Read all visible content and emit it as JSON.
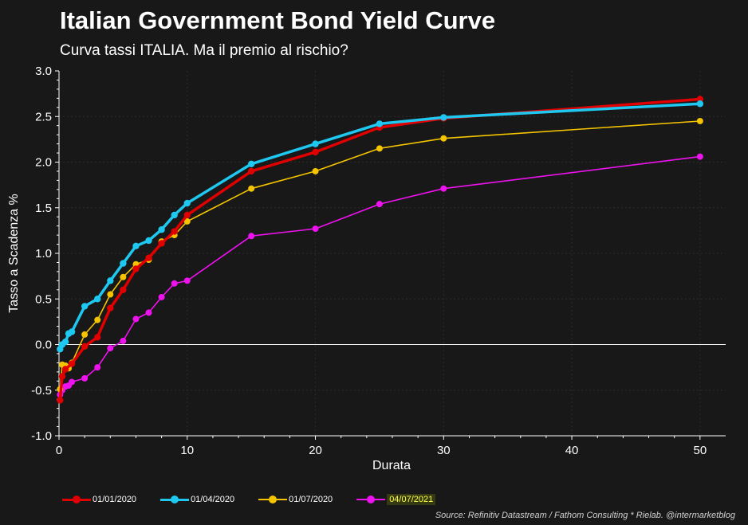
{
  "title": "Italian Government Bond Yield Curve",
  "subtitle": "Curva tassi ITALIA. Ma il premio al rischio?",
  "source": "Source: Refinitiv Datastream / Fathom Consulting * Rielab. @intermarketblog",
  "chart_data": {
    "type": "line",
    "xlabel": "Durata",
    "ylabel": "Tasso a Scadenza %",
    "xlim": [
      0,
      52
    ],
    "ylim": [
      -1.0,
      3.0
    ],
    "xticks": [
      "0",
      "10",
      "20",
      "30",
      "40",
      "50"
    ],
    "yticks": [
      "-1.0",
      "-0.5",
      "0.0",
      "0.5",
      "1.0",
      "1.5",
      "2.0",
      "2.5",
      "3.0"
    ],
    "grid": true,
    "legend_position": "bottom",
    "series": [
      {
        "name": "01/01/2020",
        "color": "#e00000",
        "x": [
          0.08,
          0.25,
          0.5,
          1,
          2,
          3,
          4,
          5,
          6,
          7,
          8,
          9,
          10,
          15,
          20,
          25,
          30,
          50
        ],
        "y": [
          -0.61,
          -0.35,
          -0.27,
          -0.21,
          -0.02,
          0.08,
          0.4,
          0.6,
          0.83,
          0.95,
          1.11,
          1.24,
          1.42,
          1.9,
          2.11,
          2.38,
          2.48,
          2.69
        ]
      },
      {
        "name": "01/04/2020",
        "color": "#1ec8f0",
        "x": [
          0.08,
          0.25,
          0.5,
          0.75,
          1,
          2,
          3,
          4,
          5,
          6,
          7,
          8,
          9,
          10,
          15,
          20,
          25,
          30,
          50
        ],
        "y": [
          -0.05,
          0.0,
          0.03,
          0.12,
          0.14,
          0.42,
          0.5,
          0.7,
          0.89,
          1.08,
          1.14,
          1.26,
          1.42,
          1.55,
          1.98,
          2.2,
          2.42,
          2.49,
          2.64
        ]
      },
      {
        "name": "01/07/2020",
        "color": "#f5c400",
        "x": [
          0.08,
          0.25,
          0.5,
          0.75,
          1,
          2,
          3,
          4,
          5,
          6,
          7,
          8,
          9,
          10,
          15,
          20,
          25,
          30,
          50
        ],
        "y": [
          -0.49,
          -0.22,
          -0.23,
          -0.26,
          -0.2,
          0.11,
          0.27,
          0.55,
          0.74,
          0.88,
          0.93,
          1.13,
          1.2,
          1.35,
          1.71,
          1.9,
          2.15,
          2.26,
          2.45
        ]
      },
      {
        "name": "04/07/2021",
        "color": "#ee12ee",
        "x": [
          0.08,
          0.25,
          0.5,
          0.75,
          1,
          2,
          3,
          4,
          5,
          6,
          7,
          8,
          9,
          10,
          15,
          20,
          25,
          30,
          50
        ],
        "y": [
          -0.55,
          -0.5,
          -0.46,
          -0.45,
          -0.41,
          -0.37,
          -0.25,
          -0.04,
          0.04,
          0.28,
          0.35,
          0.52,
          0.67,
          0.7,
          1.19,
          1.27,
          1.54,
          1.71,
          2.06
        ]
      }
    ]
  }
}
